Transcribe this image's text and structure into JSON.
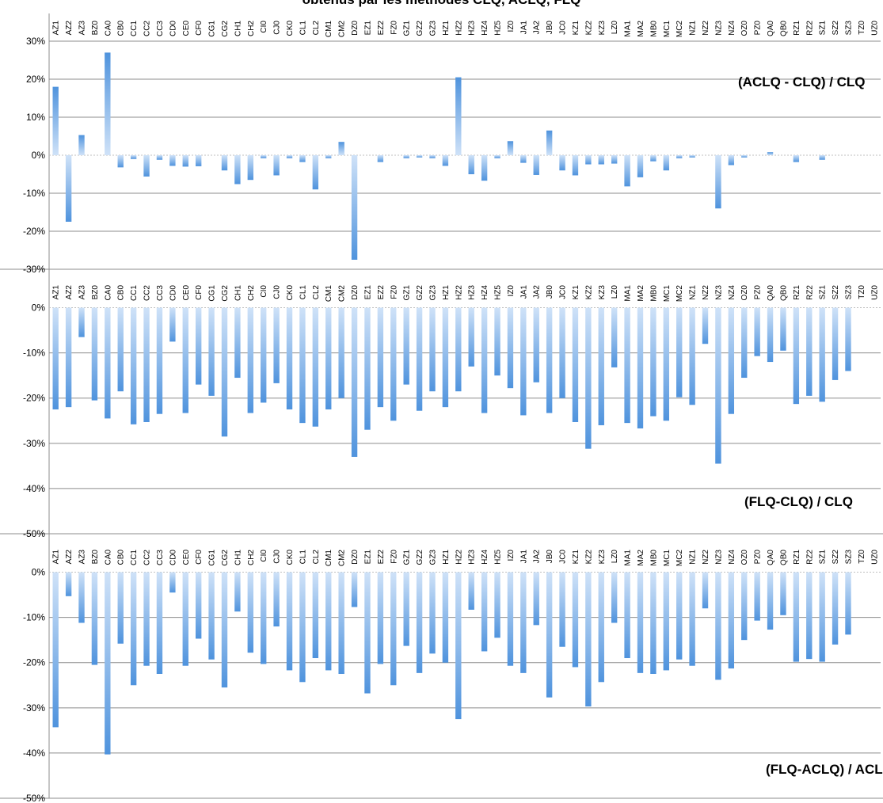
{
  "figure_title": "obtenus par les méthodes CLQ, ACLQ, FLQ",
  "colors": {
    "bar_light": "#cfe2f8",
    "bar_dark": "#4f93dd",
    "gridline": "#8c8c8c",
    "axis": "#8c8c8c",
    "zero_line": "#bfbfbf",
    "text": "#000000"
  },
  "chart_data": [
    {
      "type": "bar",
      "title": "",
      "annotation": "(ACLQ - CLQ) / CLQ",
      "xlabel": "",
      "ylabel": "",
      "ylim": [
        -30,
        30
      ],
      "yticks": [
        30,
        20,
        10,
        0,
        -10,
        -20,
        -30
      ],
      "ytick_labels": [
        "30%",
        "20%",
        "10%",
        "0%",
        "-10%",
        "-20%",
        "-30%"
      ],
      "grid": true,
      "category_labels_position": "top",
      "categories": [
        "AZ1",
        "AZ2",
        "AZ3",
        "BZ0",
        "CA0",
        "CB0",
        "CC1",
        "CC2",
        "CC3",
        "CD0",
        "CE0",
        "CF0",
        "CG1",
        "CG2",
        "CH1",
        "CH2",
        "CI0",
        "CJ0",
        "CK0",
        "CL1",
        "CL2",
        "CM1",
        "CM2",
        "DZ0",
        "EZ1",
        "EZ2",
        "FZ0",
        "GZ1",
        "GZ2",
        "GZ3",
        "HZ1",
        "HZ2",
        "HZ3",
        "HZ4",
        "HZ5",
        "IZ0",
        "JA1",
        "JA2",
        "JB0",
        "JC0",
        "KZ1",
        "KZ2",
        "KZ3",
        "LZ0",
        "MA1",
        "MA2",
        "MB0",
        "MC1",
        "MC2",
        "NZ1",
        "NZ2",
        "NZ3",
        "NZ4",
        "OZ0",
        "PZ0",
        "QA0",
        "QB0",
        "RZ1",
        "RZ2",
        "SZ1",
        "SZ2",
        "SZ3",
        "TZ0",
        "UZ0"
      ],
      "values": [
        18,
        -17.5,
        5.3,
        0,
        27,
        -3.2,
        -1,
        -5.6,
        -1.2,
        -2.8,
        -3,
        -2.9,
        0,
        -4,
        -7.6,
        -6.5,
        -0.8,
        -5.3,
        -0.8,
        -1.8,
        -9,
        -0.8,
        3.5,
        -27.5,
        0,
        -1.8,
        0,
        -0.8,
        -0.6,
        -0.8,
        -2.8,
        20.5,
        -5,
        -6.7,
        -0.8,
        3.7,
        -2,
        -5.2,
        6.5,
        -4,
        -5.3,
        -2.4,
        -2.4,
        -2.2,
        -8.2,
        -5.8,
        -1.6,
        -4,
        -0.8,
        -0.6,
        0,
        -14,
        -2.6,
        -0.6,
        0,
        0.8,
        0,
        -1.8,
        0,
        -1.2,
        0,
        0,
        0,
        0
      ]
    },
    {
      "type": "bar",
      "title": "",
      "annotation": "(FLQ-CLQ) / CLQ",
      "xlabel": "",
      "ylabel": "",
      "ylim": [
        -50,
        5
      ],
      "yticks": [
        0,
        -10,
        -20,
        -30,
        -40,
        -50
      ],
      "ytick_labels": [
        "0%",
        "-10%",
        "-20%",
        "-30%",
        "-40%",
        "-50%"
      ],
      "grid": true,
      "category_labels_position": "top",
      "categories": [
        "AZ1",
        "AZ2",
        "AZ3",
        "BZ0",
        "CA0",
        "CB0",
        "CC1",
        "CC2",
        "CC3",
        "CD0",
        "CE0",
        "CF0",
        "CG1",
        "CG2",
        "CH1",
        "CH2",
        "CI0",
        "CJ0",
        "CK0",
        "CL1",
        "CL2",
        "CM1",
        "CM2",
        "DZ0",
        "EZ1",
        "EZ2",
        "FZ0",
        "GZ1",
        "GZ2",
        "GZ3",
        "HZ1",
        "HZ2",
        "HZ3",
        "HZ4",
        "HZ5",
        "IZ0",
        "JA1",
        "JA2",
        "JB0",
        "JC0",
        "KZ1",
        "KZ2",
        "KZ3",
        "LZ0",
        "MA1",
        "MA2",
        "MB0",
        "MC1",
        "MC2",
        "NZ1",
        "NZ2",
        "NZ3",
        "NZ4",
        "OZ0",
        "PZ0",
        "QA0",
        "QB0",
        "RZ1",
        "RZ2",
        "SZ1",
        "SZ2",
        "SZ3",
        "TZ0",
        "UZ0"
      ],
      "values": [
        -22.5,
        -22,
        -6.5,
        -20.5,
        -24.5,
        -18.5,
        -25.8,
        -25.3,
        -23.5,
        -7.5,
        -23.3,
        -17,
        -19.5,
        -28.5,
        -15.5,
        -23.3,
        -21,
        -16.7,
        -22.5,
        -25.5,
        -26.3,
        -22.5,
        -20,
        -33,
        -27,
        -22,
        -25,
        -17,
        -22.8,
        -18.5,
        -22,
        -18.5,
        -13,
        -23.3,
        -15,
        -17.8,
        -23.8,
        -16.5,
        -23.3,
        -20,
        -25.3,
        -31.2,
        -26,
        -13.2,
        -25.5,
        -26.7,
        -24,
        -25,
        -19.8,
        -21.5,
        -8,
        -34.5,
        -23.5,
        -15.5,
        -10.7,
        -12,
        -9.5,
        -21.3,
        -19.5,
        -20.8,
        -16,
        -14,
        0,
        0
      ]
    },
    {
      "type": "bar",
      "title": "",
      "annotation": "(FLQ-ACLQ) / ACLQ",
      "xlabel": "",
      "ylabel": "",
      "ylim": [
        -50,
        5
      ],
      "yticks": [
        0,
        -10,
        -20,
        -30,
        -40,
        -50
      ],
      "ytick_labels": [
        "0%",
        "-10%",
        "-20%",
        "-30%",
        "-40%",
        "-50%"
      ],
      "grid": true,
      "category_labels_position": "top",
      "categories": [
        "AZ1",
        "AZ2",
        "AZ3",
        "BZ0",
        "CA0",
        "CB0",
        "CC1",
        "CC2",
        "CC3",
        "CD0",
        "CE0",
        "CF0",
        "CG1",
        "CG2",
        "CH1",
        "CH2",
        "CI0",
        "CJ0",
        "CK0",
        "CL1",
        "CL2",
        "CM1",
        "CM2",
        "DZ0",
        "EZ1",
        "EZ2",
        "FZ0",
        "GZ1",
        "GZ2",
        "GZ3",
        "HZ1",
        "HZ2",
        "HZ3",
        "HZ4",
        "HZ5",
        "IZ0",
        "JA1",
        "JA2",
        "JB0",
        "JC0",
        "KZ1",
        "KZ2",
        "KZ3",
        "LZ0",
        "MA1",
        "MA2",
        "MB0",
        "MC1",
        "MC2",
        "NZ1",
        "NZ2",
        "NZ3",
        "NZ4",
        "OZ0",
        "PZ0",
        "QA0",
        "QB0",
        "RZ1",
        "RZ2",
        "SZ1",
        "SZ2",
        "SZ3",
        "TZ0",
        "UZ0"
      ],
      "values": [
        -34.3,
        -5.3,
        -11.2,
        -20.5,
        -40.3,
        -15.8,
        -25,
        -20.7,
        -22.5,
        -4.5,
        -20.7,
        -14.7,
        -19.3,
        -25.5,
        -8.7,
        -17.8,
        -20.3,
        -12,
        -21.7,
        -24.3,
        -19,
        -21.7,
        -22.5,
        -7.7,
        -26.8,
        -20.3,
        -25,
        -16.3,
        -22.3,
        -18,
        -20,
        -32.5,
        -8.3,
        -17.5,
        -14.5,
        -20.7,
        -22.3,
        -11.7,
        -27.7,
        -16.5,
        -21,
        -29.7,
        -24.3,
        -11.2,
        -19,
        -22.3,
        -22.5,
        -21.7,
        -19.3,
        -20.7,
        -8,
        -23.8,
        -21.3,
        -15,
        -10.7,
        -12.7,
        -9.5,
        -19.8,
        -19.2,
        -19.8,
        -16,
        -13.8,
        0,
        0
      ]
    }
  ]
}
